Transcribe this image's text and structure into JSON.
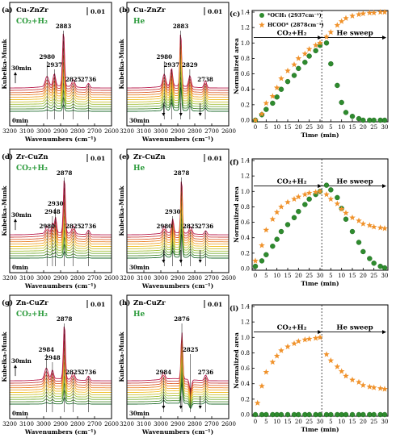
{
  "panels": [
    {
      "id": "a",
      "letter": "(a)",
      "catalyst": "Cu-ZnZr",
      "condition": "CO₂+H₂",
      "scale": "0.01",
      "peaks": [
        {
          "label": "2980",
          "wn": 2980
        },
        {
          "label": "2937",
          "wn": 2937
        },
        {
          "label": "2883",
          "wn": 2883
        },
        {
          "label": "2825",
          "wn": 2825
        },
        {
          "label": "2736",
          "wn": 2736
        }
      ],
      "time_top": "30min",
      "time_bottom": "0min"
    },
    {
      "id": "b",
      "letter": "(b)",
      "catalyst": "Cu-ZnZr",
      "condition": "He",
      "scale": "0.01",
      "peaks": [
        {
          "label": "2980",
          "wn": 2980
        },
        {
          "label": "2937",
          "wn": 2937
        },
        {
          "label": "2883",
          "wn": 2883
        },
        {
          "label": "2829",
          "wn": 2829
        },
        {
          "label": "2738",
          "wn": 2738
        }
      ],
      "time_top": "",
      "time_bottom": "30min"
    },
    {
      "id": "d",
      "letter": "(d)",
      "catalyst": "Zr-CuZn",
      "condition": "CO₂+H₂",
      "scale": "0.01",
      "peaks": [
        {
          "label": "2980",
          "wn": 2980
        },
        {
          "label": "2948",
          "wn": 2948
        },
        {
          "label": "2930",
          "wn": 2930
        },
        {
          "label": "2878",
          "wn": 2878
        },
        {
          "label": "2825",
          "wn": 2825
        },
        {
          "label": "2736",
          "wn": 2736
        }
      ],
      "time_top": "30min",
      "time_bottom": "0min"
    },
    {
      "id": "e",
      "letter": "(e)",
      "catalyst": "Zr-CuZn",
      "condition": "He",
      "scale": "0.01",
      "peaks": [
        {
          "label": "2980",
          "wn": 2980
        },
        {
          "label": "2930",
          "wn": 2930
        },
        {
          "label": "2878",
          "wn": 2878
        },
        {
          "label": "2825",
          "wn": 2825
        },
        {
          "label": "2736",
          "wn": 2736
        }
      ],
      "time_top": "",
      "time_bottom": "30min"
    },
    {
      "id": "g",
      "letter": "(g)",
      "catalyst": "Zn-CuZr",
      "condition": "CO₂+H₂",
      "scale": "0.01",
      "peaks": [
        {
          "label": "2984",
          "wn": 2984
        },
        {
          "label": "2948",
          "wn": 2948
        },
        {
          "label": "2878",
          "wn": 2878
        },
        {
          "label": "2825",
          "wn": 2825
        },
        {
          "label": "2736",
          "wn": 2736
        }
      ],
      "time_top": "30min",
      "time_bottom": "0min"
    },
    {
      "id": "h",
      "letter": "(h)",
      "catalyst": "Zn-CuZr",
      "condition": "He",
      "scale": "0.01",
      "peaks": [
        {
          "label": "2984",
          "wn": 2984
        },
        {
          "label": "2876",
          "wn": 2876
        },
        {
          "label": "2825",
          "wn": 2825
        },
        {
          "label": "2736",
          "wn": 2736
        }
      ],
      "time_top": "",
      "time_bottom": "30min"
    }
  ],
  "spectra_axes": {
    "xlabel": "Wavenumbers (cm⁻¹)",
    "ylabel": "Kubelka-Munk",
    "xlim": [
      3200,
      2600
    ],
    "xticks": [
      3200,
      3100,
      3000,
      2900,
      2800,
      2700,
      2600
    ]
  },
  "kinetics_axes": {
    "xlabel": "Time (min)",
    "ylabel": "Normalized area",
    "ylim": [
      0,
      1.4
    ],
    "yticks": [
      "0.0",
      "0.2",
      "0.4",
      "0.6",
      "0.8",
      "1.0",
      "1.2",
      "1.4"
    ],
    "xticks": [
      "0",
      "5",
      "10",
      "15",
      "20",
      "25",
      "30",
      "5",
      "10",
      "15",
      "20",
      "25",
      "30"
    ],
    "phase1": "CO₂+H₂",
    "phase2": "He sweep",
    "legend": [
      {
        "name": "*OCH₃ (2937cm⁻¹)",
        "color": "#2e8b2e"
      },
      {
        "name": "HCOO* (2878cm⁻¹)",
        "color": "#f0922b"
      }
    ]
  },
  "chart_data": [
    {
      "type": "scatter",
      "panel": "(c)",
      "title": "",
      "xlabel": "Time (min)",
      "ylabel": "Normalized area",
      "ylim": [
        0,
        1.4
      ],
      "series": [
        {
          "name": "*OCH₃ (2937cm⁻¹)",
          "color": "#2e8b2e",
          "x": [
            0,
            3,
            5,
            8,
            10,
            12,
            15,
            18,
            20,
            23,
            25,
            28,
            30,
            33,
            35,
            38,
            40,
            42,
            45,
            48,
            50,
            53,
            55,
            58,
            60
          ],
          "y": [
            0.0,
            0.07,
            0.14,
            0.22,
            0.3,
            0.4,
            0.5,
            0.58,
            0.67,
            0.75,
            0.83,
            0.9,
            0.97,
            1.0,
            0.73,
            0.45,
            0.23,
            0.1,
            0.05,
            0.02,
            0.0,
            0.0,
            0.0,
            0.0,
            0.0
          ]
        },
        {
          "name": "HCOO* (2878cm⁻¹)",
          "color": "#f0922b",
          "x": [
            0,
            3,
            5,
            8,
            10,
            12,
            15,
            18,
            20,
            23,
            25,
            28,
            30,
            33,
            35,
            38,
            40,
            42,
            45,
            48,
            50,
            53,
            55,
            58,
            60
          ],
          "y": [
            0.0,
            0.08,
            0.22,
            0.31,
            0.42,
            0.54,
            0.64,
            0.72,
            0.8,
            0.86,
            0.92,
            0.97,
            1.0,
            1.08,
            1.14,
            1.23,
            1.28,
            1.32,
            1.35,
            1.37,
            1.38,
            1.39,
            1.39,
            1.4,
            1.4
          ]
        }
      ]
    },
    {
      "type": "scatter",
      "panel": "(f)",
      "title": "",
      "xlabel": "Time (min)",
      "ylabel": "Normalized area",
      "ylim": [
        0,
        1.4
      ],
      "series": [
        {
          "name": "*OCH₃ (2937cm⁻¹)",
          "color": "#2e8b2e",
          "x": [
            0,
            3,
            5,
            8,
            10,
            12,
            15,
            18,
            20,
            23,
            25,
            28,
            30,
            33,
            35,
            38,
            40,
            42,
            45,
            48,
            50,
            53,
            55,
            58,
            60
          ],
          "y": [
            0.03,
            0.1,
            0.18,
            0.29,
            0.38,
            0.48,
            0.57,
            0.66,
            0.74,
            0.83,
            0.9,
            0.96,
            1.0,
            1.08,
            1.02,
            0.92,
            0.78,
            0.64,
            0.48,
            0.34,
            0.22,
            0.13,
            0.07,
            0.03,
            0.01
          ]
        },
        {
          "name": "HCOO* (2878cm⁻¹)",
          "color": "#f0922b",
          "x": [
            0,
            3,
            5,
            8,
            10,
            12,
            15,
            18,
            20,
            23,
            25,
            28,
            30,
            33,
            35,
            38,
            40,
            42,
            45,
            48,
            50,
            53,
            55,
            58,
            60
          ],
          "y": [
            0.1,
            0.3,
            0.5,
            0.64,
            0.73,
            0.8,
            0.86,
            0.9,
            0.93,
            0.96,
            0.98,
            0.99,
            1.0,
            0.96,
            0.9,
            0.84,
            0.77,
            0.72,
            0.66,
            0.62,
            0.58,
            0.56,
            0.54,
            0.53,
            0.52
          ]
        }
      ]
    },
    {
      "type": "scatter",
      "panel": "(i)",
      "title": "",
      "xlabel": "Time (min)",
      "ylabel": "Normalized area",
      "ylim": [
        0,
        1.4
      ],
      "series": [
        {
          "name": "*OCH₃ (2937cm⁻¹)",
          "color": "#2e8b2e",
          "x": [
            0,
            3,
            5,
            8,
            10,
            12,
            15,
            18,
            20,
            23,
            25,
            28,
            30,
            33,
            35,
            38,
            40,
            42,
            45,
            48,
            50,
            53,
            55,
            58,
            60
          ],
          "y": [
            0,
            0,
            0,
            0,
            0,
            0,
            0,
            0,
            0,
            0,
            0,
            0,
            0,
            0,
            0,
            0,
            0,
            0,
            0,
            0,
            0,
            0,
            0,
            0,
            0
          ]
        },
        {
          "name": "HCOO* (2878cm⁻¹)",
          "color": "#f0922b",
          "x": [
            1,
            3,
            5,
            8,
            10,
            12,
            15,
            18,
            20,
            23,
            25,
            28,
            30,
            33,
            35,
            38,
            40,
            42,
            45,
            48,
            50,
            53,
            55,
            58,
            60
          ],
          "y": [
            0.15,
            0.37,
            0.55,
            0.68,
            0.76,
            0.83,
            0.88,
            0.92,
            0.95,
            0.97,
            0.98,
            0.99,
            1.0,
            0.78,
            0.7,
            0.62,
            0.56,
            0.5,
            0.45,
            0.42,
            0.38,
            0.36,
            0.35,
            0.34,
            0.33
          ]
        }
      ]
    }
  ]
}
